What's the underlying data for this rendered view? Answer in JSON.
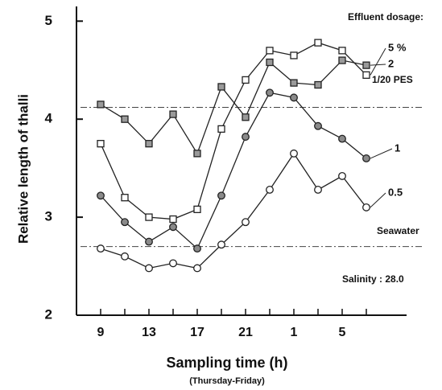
{
  "chart_data": {
    "type": "line",
    "y_label": "Relative length of thalli",
    "x_label": "Sampling time (h)",
    "x_sublabel": "(Thursday-Friday)",
    "legend_title": "Effluent dosage:",
    "annotation": "Salinity : 28.0",
    "categories": [
      "9",
      null,
      "13",
      null,
      "17",
      null,
      "21",
      null,
      "1",
      null,
      "5",
      null
    ],
    "ylim": [
      2,
      5.15
    ],
    "yticks": [
      2,
      3,
      4,
      5
    ],
    "series": [
      {
        "name": "5 %",
        "color": "#222222",
        "marker": "square",
        "fill": "#ffffff",
        "values": [
          3.75,
          3.2,
          3.0,
          2.98,
          3.08,
          3.9,
          4.4,
          4.7,
          4.65,
          4.78,
          4.7,
          4.45
        ]
      },
      {
        "name": "2",
        "color": "#222222",
        "marker": "square",
        "fill": "#9a9a9a",
        "values": [
          4.15,
          4.0,
          3.75,
          4.05,
          3.65,
          4.33,
          4.02,
          4.58,
          4.37,
          4.35,
          4.6,
          4.55
        ]
      },
      {
        "name": "1",
        "color": "#222222",
        "marker": "circle",
        "fill": "#8a8a8a",
        "values": [
          3.22,
          2.95,
          2.75,
          2.9,
          2.68,
          3.22,
          3.82,
          4.27,
          4.22,
          3.93,
          3.8,
          3.6
        ]
      },
      {
        "name": "0.5",
        "color": "#222222",
        "marker": "circle",
        "fill": "#ffffff",
        "values": [
          2.68,
          2.6,
          2.48,
          2.53,
          2.48,
          2.72,
          2.95,
          3.28,
          3.65,
          3.28,
          3.42,
          3.1
        ]
      }
    ],
    "reference_lines": [
      {
        "name": "1/20 PES",
        "value": 4.12
      },
      {
        "name": "Seawater",
        "value": 2.7
      }
    ]
  }
}
